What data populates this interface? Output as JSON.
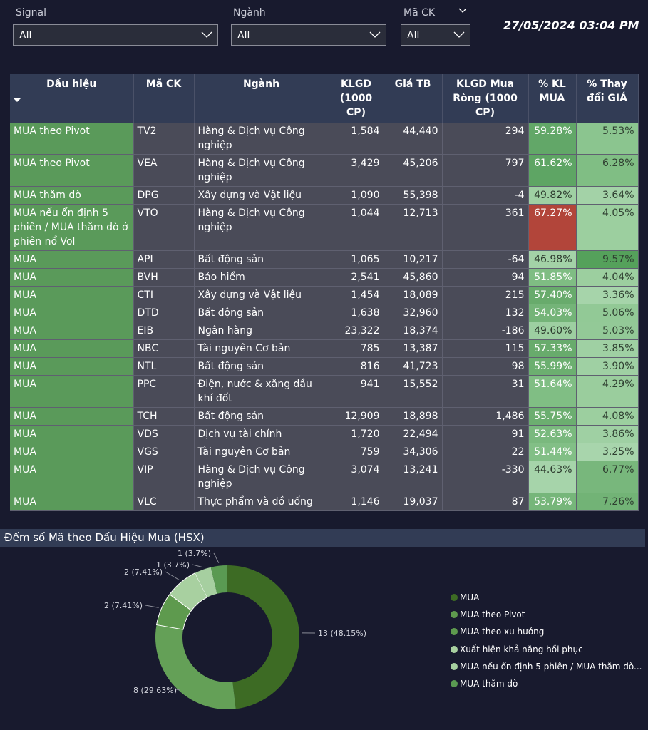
{
  "filters": {
    "signal": {
      "label": "Signal",
      "value": "All"
    },
    "nganh": {
      "label": "Ngành",
      "value": "All"
    },
    "mack": {
      "label": "Mã CK",
      "value": "All"
    }
  },
  "datetime": "27/05/2024 03:04 PM",
  "table": {
    "headers": [
      "Dấu hiệu",
      "Mã CK",
      "Ngành",
      "KLGD (1000 CP)",
      "Giá TB",
      "KLGD Mua Ròng (1000 CP)",
      "% KL MUA",
      "% Thay đổi GIÁ"
    ],
    "rows": [
      {
        "sig": "MUA theo Pivot",
        "ma": "TV2",
        "nganh": "Hàng & Dịch vụ Công nghiệp",
        "klgd": "1,584",
        "gia": "44,440",
        "rong": "294",
        "klmua": "59.28%",
        "thaydoi": "5.53%"
      },
      {
        "sig": "MUA theo Pivot",
        "ma": "VEA",
        "nganh": "Hàng & Dịch vụ Công nghiệp",
        "klgd": "3,429",
        "gia": "45,206",
        "rong": "797",
        "klmua": "61.62%",
        "thaydoi": "6.28%"
      },
      {
        "sig": "MUA thăm dò",
        "ma": "DPG",
        "nganh": "Xây dựng và Vật liệu",
        "klgd": "1,090",
        "gia": "55,398",
        "rong": "-4",
        "klmua": "49.82%",
        "thaydoi": "3.64%"
      },
      {
        "sig": "MUA nếu ổn định 5 phiên / MUA thăm dò ở phiên nổ Vol",
        "ma": "VTO",
        "nganh": "Hàng & Dịch vụ Công nghiệp",
        "klgd": "1,044",
        "gia": "12,713",
        "rong": "361",
        "klmua": "67.27%",
        "thaydoi": "4.05%"
      },
      {
        "sig": "MUA",
        "ma": "API",
        "nganh": "Bất động sản",
        "klgd": "1,065",
        "gia": "10,217",
        "rong": "-64",
        "klmua": "46.98%",
        "thaydoi": "9.57%"
      },
      {
        "sig": "MUA",
        "ma": "BVH",
        "nganh": "Bảo hiểm",
        "klgd": "2,541",
        "gia": "45,860",
        "rong": "94",
        "klmua": "51.85%",
        "thaydoi": "4.04%"
      },
      {
        "sig": "MUA",
        "ma": "CTI",
        "nganh": "Xây dựng và Vật liệu",
        "klgd": "1,454",
        "gia": "18,089",
        "rong": "215",
        "klmua": "57.40%",
        "thaydoi": "3.36%"
      },
      {
        "sig": "MUA",
        "ma": "DTD",
        "nganh": "Bất động sản",
        "klgd": "1,638",
        "gia": "32,960",
        "rong": "132",
        "klmua": "54.03%",
        "thaydoi": "5.06%"
      },
      {
        "sig": "MUA",
        "ma": "EIB",
        "nganh": "Ngân hàng",
        "klgd": "23,322",
        "gia": "18,374",
        "rong": "-186",
        "klmua": "49.60%",
        "thaydoi": "5.03%"
      },
      {
        "sig": "MUA",
        "ma": "NBC",
        "nganh": "Tài nguyên Cơ bản",
        "klgd": "785",
        "gia": "13,387",
        "rong": "115",
        "klmua": "57.33%",
        "thaydoi": "3.85%"
      },
      {
        "sig": "MUA",
        "ma": "NTL",
        "nganh": "Bất động sản",
        "klgd": "816",
        "gia": "41,723",
        "rong": "98",
        "klmua": "55.99%",
        "thaydoi": "3.90%"
      },
      {
        "sig": "MUA",
        "ma": "PPC",
        "nganh": "Điện, nước & xăng dầu khí đốt",
        "klgd": "941",
        "gia": "15,552",
        "rong": "31",
        "klmua": "51.64%",
        "thaydoi": "4.29%"
      },
      {
        "sig": "MUA",
        "ma": "TCH",
        "nganh": "Bất động sản",
        "klgd": "12,909",
        "gia": "18,898",
        "rong": "1,486",
        "klmua": "55.75%",
        "thaydoi": "4.08%"
      },
      {
        "sig": "MUA",
        "ma": "VDS",
        "nganh": "Dịch vụ tài chính",
        "klgd": "1,720",
        "gia": "22,494",
        "rong": "91",
        "klmua": "52.63%",
        "thaydoi": "3.86%"
      },
      {
        "sig": "MUA",
        "ma": "VGS",
        "nganh": "Tài nguyên Cơ bản",
        "klgd": "759",
        "gia": "34,306",
        "rong": "22",
        "klmua": "51.44%",
        "thaydoi": "3.25%"
      },
      {
        "sig": "MUA",
        "ma": "VIP",
        "nganh": "Hàng & Dịch vụ Công nghiệp",
        "klgd": "3,074",
        "gia": "13,241",
        "rong": "-330",
        "klmua": "44.63%",
        "thaydoi": "6.77%"
      },
      {
        "sig": "MUA",
        "ma": "VLC",
        "nganh": "Thực phẩm và đồ uống",
        "klgd": "1,146",
        "gia": "19,037",
        "rong": "87",
        "klmua": "53.79%",
        "thaydoi": "7.26%"
      }
    ]
  },
  "colors": {
    "signal_cell": "#5a9a5a",
    "highlight_red": "#b2453a"
  },
  "chart_data": {
    "type": "pie",
    "title": "Đếm số Mã theo Dấu Hiệu Mua (HSX)",
    "categories": [
      "MUA",
      "MUA theo Pivot",
      "MUA theo xu hướng",
      "Xuất hiện khả năng hồi phục",
      "MUA nếu ổn định 5 phiên / MUA thăm dò...",
      "MUA thăm dò"
    ],
    "values": [
      13,
      8,
      2,
      2,
      1,
      1
    ],
    "labels": [
      "13 (48.15%)",
      "8 (29.63%)",
      "2 (7.41%)",
      "2 (7.41%)",
      "1 (3.7%)",
      "1 (3.7%)"
    ],
    "colors": [
      "#3d6b24",
      "#64a057",
      "#5e9a4e",
      "#a8d0a0",
      "#a6cfa0",
      "#5a9a52"
    ],
    "donut": true,
    "legend": "right"
  }
}
